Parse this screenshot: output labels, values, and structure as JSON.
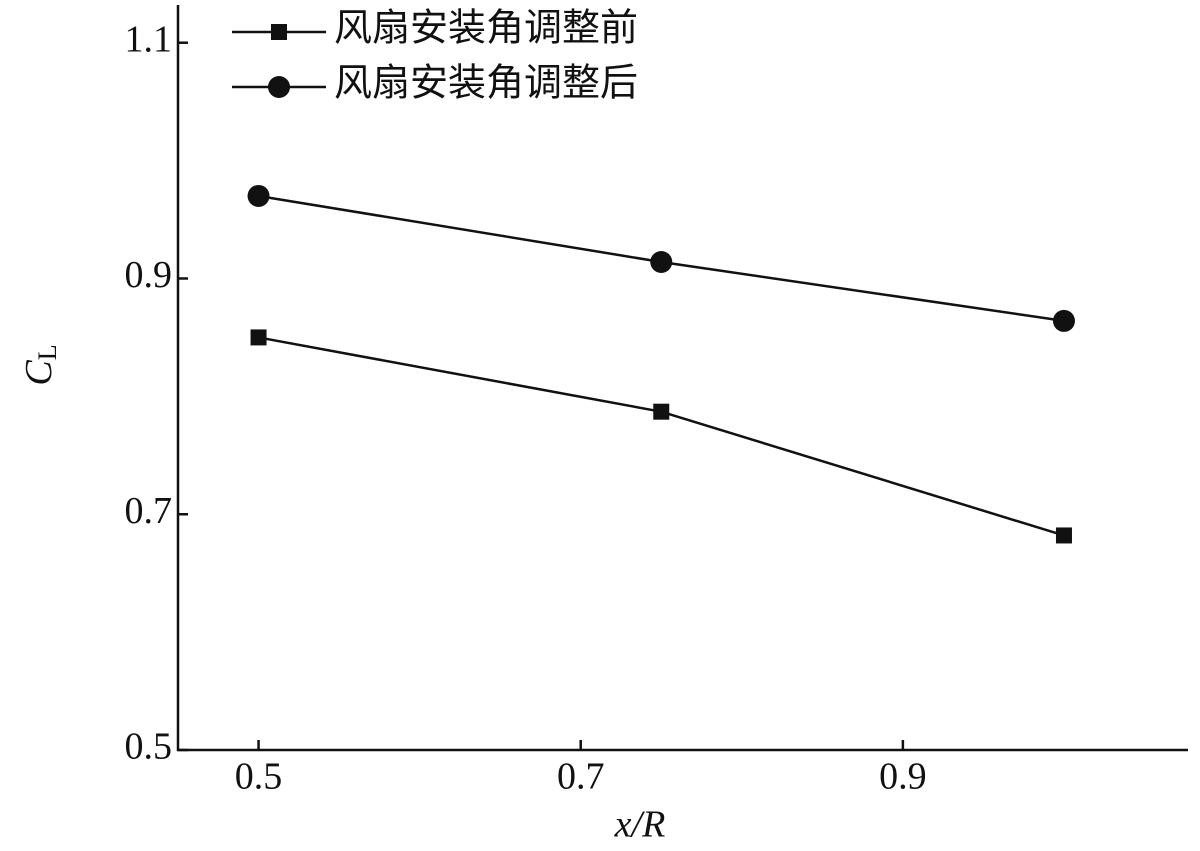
{
  "chart_data": {
    "type": "line",
    "xlabel": "x/R",
    "ylabel": [
      "C",
      "L"
    ],
    "x": [
      0.5,
      0.75,
      1.0
    ],
    "series": [
      {
        "name": "风扇安装角调整前",
        "color": "#111111",
        "marker": "square",
        "values": [
          0.85,
          0.787,
          0.682
        ]
      },
      {
        "name": "风扇安装角调整后",
        "color": "#111111",
        "marker": "circle",
        "values": [
          0.97,
          0.914,
          0.864
        ]
      }
    ],
    "xlim": [
      0.45,
      1.077
    ],
    "xticks": [
      0.5,
      0.7,
      0.9
    ],
    "ylim": [
      0.5,
      1.132
    ],
    "yticks": [
      0.5,
      {
        "value": 0.7,
        "label": "0.7"
      },
      {
        "value": 0.9,
        "label": "0.9"
      },
      1.1
    ],
    "legend": "upper left"
  }
}
